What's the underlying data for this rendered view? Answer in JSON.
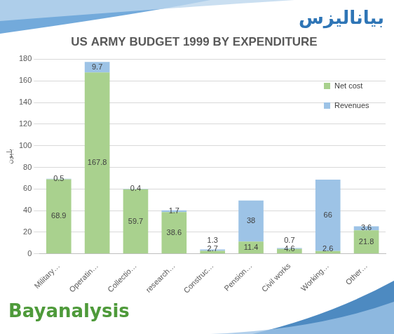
{
  "chart_data": {
    "type": "bar",
    "title": "US ARMY BUDGET 1999 BY EXPENDITURE",
    "y_label": "بليون",
    "categories": [
      "Military…",
      "Operatin…",
      "Collectio…",
      "research…",
      "Construc…",
      "Pension…",
      "Civil works",
      "Working…",
      "Other…"
    ],
    "series": [
      {
        "name": "Net cost",
        "color": "#a9d18e",
        "values": [
          68.9,
          167.8,
          59.7,
          38.6,
          2.7,
          11.4,
          4.6,
          2.6,
          21.8
        ]
      },
      {
        "name": "Revenues",
        "color": "#9dc3e6",
        "values": [
          0.5,
          9.7,
          0.4,
          1.7,
          1.3,
          38,
          0.7,
          66,
          3.6
        ]
      }
    ],
    "ylim": [
      0,
      180
    ],
    "yticks": [
      0,
      20,
      40,
      60,
      80,
      100,
      120,
      140,
      160,
      180
    ],
    "stacked": true,
    "data_labels": true,
    "grid": true,
    "legend": "upper right",
    "annotations": [
      "بياناليزس",
      "Bayanalysis"
    ]
  }
}
